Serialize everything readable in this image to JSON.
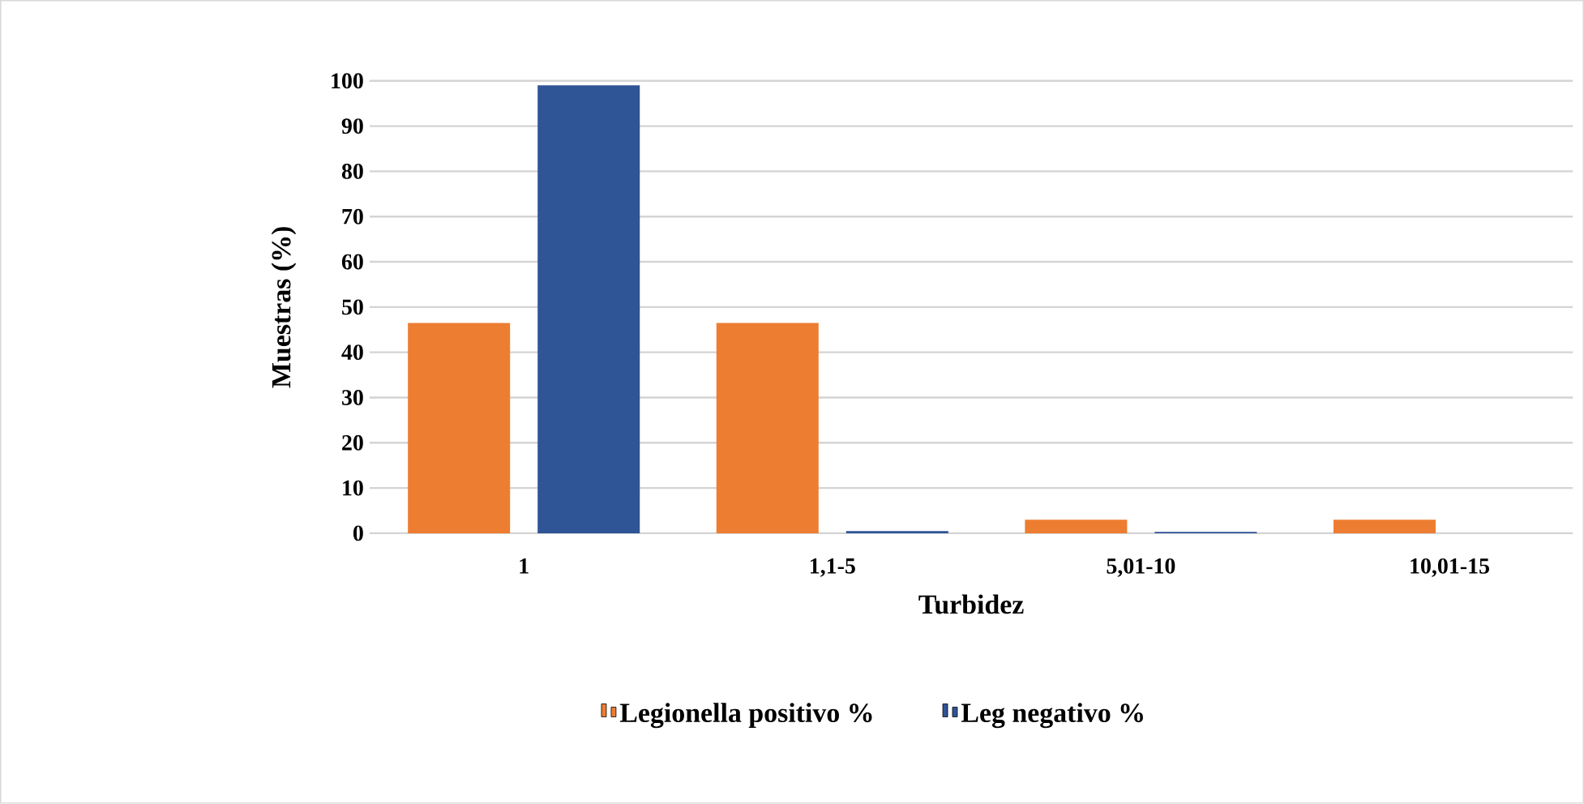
{
  "chart_data": {
    "type": "bar",
    "xlabel": "Turbidez",
    "ylabel": "Muestras (%)",
    "categories": [
      "1",
      "1,1-5",
      "5,01-10",
      "10,01-15"
    ],
    "series": [
      {
        "name": "Legionella positivo %",
        "color": "#ed7d31",
        "values": [
          46.5,
          46.5,
          3,
          3
        ]
      },
      {
        "name": "Leg negativo %",
        "color": "#2f5597",
        "values": [
          99,
          0.5,
          0.3,
          0
        ]
      }
    ],
    "ylim": [
      0,
      100
    ],
    "yticks": [
      0,
      10,
      20,
      30,
      40,
      50,
      60,
      70,
      80,
      90,
      100
    ],
    "grid": "y",
    "legend": "bottom"
  }
}
